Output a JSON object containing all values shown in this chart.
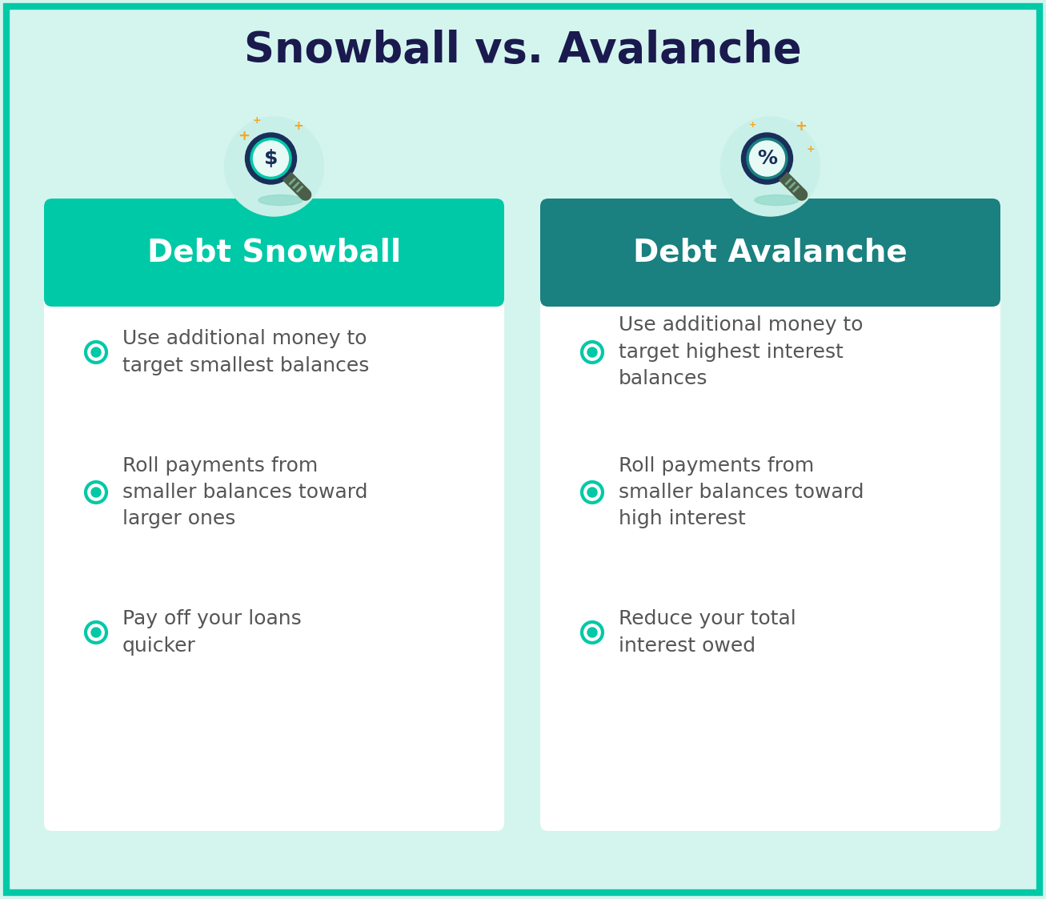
{
  "title": "Snowball vs. Avalanche",
  "title_color": "#1a1a4e",
  "title_fontsize": 38,
  "background_color": "#d4f5ee",
  "snowball_header_color": "#00c9a7",
  "avalanche_header_color": "#1a8080",
  "card_bg_color": "#ffffff",
  "header_text_color": "#ffffff",
  "bullet_color": "#00c9a7",
  "text_color": "#555555",
  "snowball_title": "Debt Snowball",
  "avalanche_title": "Debt Avalanche",
  "snowball_bullets": [
    "Use additional money to\ntarget smallest balances",
    "Roll payments from\nsmaller balances toward\nlarger ones",
    "Pay off your loans\nquicker"
  ],
  "avalanche_bullets": [
    "Use additional money to\ntarget highest interest\nbalances",
    "Roll payments from\nsmaller balances toward\nhigh interest",
    "Reduce your total\ninterest owed"
  ],
  "icon_bg_color": "#c8f0e8",
  "snowball_lens_color": "#00c9a7",
  "avalanche_lens_color": "#1a8080",
  "icon_dark_color": "#1a2e5a",
  "orange_star_color": "#f5a623",
  "bullet_fontsize": 18,
  "header_fontsize": 28,
  "border_color": "#00c9a7"
}
